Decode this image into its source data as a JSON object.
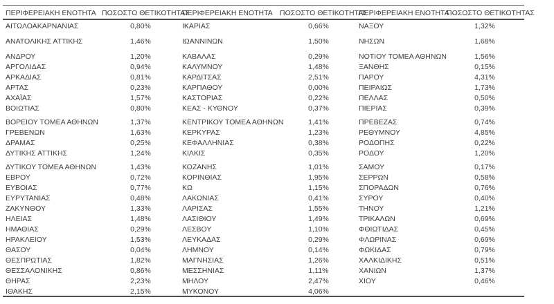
{
  "colors": {
    "background": "#ffffff",
    "text": "#3d3d3d",
    "rule": "#4f4f4f"
  },
  "table": {
    "columns": [
      {
        "headers": {
          "region": "ΠΕΡΙΦΕΡΕΙΑΚΗ ΕΝΟΤΗΤΑ",
          "rate": "ΠΟΣΟΣΤΟ ΘΕΤΙΚΟΤΗΤΑΣ"
        },
        "rows": [
          {
            "region": "ΑΙΤΩΛΟΑΚΑΡΝΑΝΙΑΣ",
            "rate": "0,80%"
          },
          {
            "region": "ΑΝΑΤΟΛΙΚΗΣ ΑΤΤΙΚΗΣ",
            "rate": "1,46%"
          },
          {
            "region": "ΑΝΔΡΟΥ",
            "rate": "1,20%"
          },
          {
            "region": "ΑΡΓΟΛΙΔΑΣ",
            "rate": "0,94%"
          },
          {
            "region": "ΑΡΚΑΔΙΑΣ",
            "rate": "0,81%"
          },
          {
            "region": "ΑΡΤΑΣ",
            "rate": "0,23%"
          },
          {
            "region": "ΑΧΑΪΑΣ",
            "rate": "1,57%"
          },
          {
            "region": "ΒΟΙΩΤΙΑΣ",
            "rate": "0,80%"
          },
          {
            "region": "ΒΟΡΕΙΟΥ ΤΟΜΕΑ ΑΘΗΝΩΝ",
            "rate": "1,37%"
          },
          {
            "region": "ΓΡΕΒΕΝΩΝ",
            "rate": "1,63%"
          },
          {
            "region": "ΔΡΑΜΑΣ",
            "rate": "0,25%"
          },
          {
            "region": "ΔΥΤΙΚΗΣ ΑΤΤΙΚΗΣ",
            "rate": "1,24%"
          },
          {
            "region": "ΔΥΤΙΚΟΥ ΤΟΜΕΑ ΑΘΗΝΩΝ",
            "rate": "1,43%"
          },
          {
            "region": "ΕΒΡΟΥ",
            "rate": "0,72%"
          },
          {
            "region": "ΕΥΒΟΙΑΣ",
            "rate": "0,77%"
          },
          {
            "region": "ΕΥΡΥΤΑΝΙΑΣ",
            "rate": "0,48%"
          },
          {
            "region": "ΖΑΚΥΝΘΟΥ",
            "rate": "1,33%"
          },
          {
            "region": "ΗΛΕΙΑΣ",
            "rate": "1,48%"
          },
          {
            "region": "ΗΜΑΘΙΑΣ",
            "rate": "0,29%"
          },
          {
            "region": "ΗΡΑΚΛΕΙΟΥ",
            "rate": "1,53%"
          },
          {
            "region": "ΘΑΣΟΥ",
            "rate": "0,04%"
          },
          {
            "region": "ΘΕΣΠΡΩΤΙΑΣ",
            "rate": "1,82%"
          },
          {
            "region": "ΘΕΣΣΑΛΟΝΙΚΗΣ",
            "rate": "0,86%"
          },
          {
            "region": "ΘΗΡΑΣ",
            "rate": "2,23%"
          },
          {
            "region": "ΙΘΑΚΗΣ",
            "rate": "2,15%"
          }
        ]
      },
      {
        "headers": {
          "region": "ΠΕΡΙΦΕΡΕΙΑΚΗ ΕΝΟΤΗΤΑ",
          "rate": "ΠΟΣΟΣΤΟ ΘΕΤΙΚΟΤΗΤΑΣ"
        },
        "rows": [
          {
            "region": "ΙΚΑΡΙΑΣ",
            "rate": "0,66%"
          },
          {
            "region": "ΙΩΑΝΝΙΝΩΝ",
            "rate": "1,50%"
          },
          {
            "region": "ΚΑΒΑΛΑΣ",
            "rate": "0,29%"
          },
          {
            "region": "ΚΑΛΥΜΝΟΥ",
            "rate": "1,48%"
          },
          {
            "region": "ΚΑΡΔΙΤΣΑΣ",
            "rate": "2,51%"
          },
          {
            "region": "ΚΑΡΠΑΘΟΥ",
            "rate": "0,00%"
          },
          {
            "region": "ΚΑΣΤΟΡΙΑΣ",
            "rate": "0,22%"
          },
          {
            "region": "ΚΕΑΣ - ΚΥΘΝΟΥ",
            "rate": "0,37%"
          },
          {
            "region": "ΚΕΝΤΡΙΚΟΥ ΤΟΜΕΑ ΑΘΗΝΩΝ",
            "rate": "1,41%"
          },
          {
            "region": "ΚΕΡΚΥΡΑΣ",
            "rate": "1,23%"
          },
          {
            "region": "ΚΕΦΑΛΛΗΝΙΑΣ",
            "rate": "0,38%"
          },
          {
            "region": "ΚΙΛΚΙΣ",
            "rate": "0,35%"
          },
          {
            "region": "ΚΟΖΑΝΗΣ",
            "rate": "1,01%"
          },
          {
            "region": "ΚΟΡΙΝΘΙΑΣ",
            "rate": "1,95%"
          },
          {
            "region": "ΚΩ",
            "rate": "1,15%"
          },
          {
            "region": "ΛΑΚΩΝΙΑΣ",
            "rate": "0,41%"
          },
          {
            "region": "ΛΑΡΙΣΑΣ",
            "rate": "1,55%"
          },
          {
            "region": "ΛΑΣΙΘΙΟΥ",
            "rate": "1,49%"
          },
          {
            "region": "ΛΕΣΒΟΥ",
            "rate": "1,10%"
          },
          {
            "region": "ΛΕΥΚΑΔΑΣ",
            "rate": "0,29%"
          },
          {
            "region": "ΛΗΜΝΟΥ",
            "rate": "0,14%"
          },
          {
            "region": "ΜΑΓΝΗΣΙΑΣ",
            "rate": "1,26%"
          },
          {
            "region": "ΜΕΣΣΗΝΙΑΣ",
            "rate": "1,11%"
          },
          {
            "region": "ΜΗΛΟΥ",
            "rate": "2,47%"
          },
          {
            "region": "ΜΥΚΟΝΟΥ",
            "rate": "4,06%"
          }
        ]
      },
      {
        "headers": {
          "region": "ΠΕΡΙΦΕΡΕΙΑΚΗ ΕΝΟΤΗΤΑ",
          "rate": "ΠΟΣΟΣΤΟ ΘΕΤΙΚΟΤΗΤΑΣ"
        },
        "rows": [
          {
            "region": "ΝΑΞΟΥ",
            "rate": "1,32%"
          },
          {
            "region": "ΝΗΣΩΝ",
            "rate": "1,68%"
          },
          {
            "region": "ΝΟΤΙΟΥ ΤΟΜΕΑ ΑΘΗΝΩΝ",
            "rate": "1,56%"
          },
          {
            "region": "ΞΑΝΘΗΣ",
            "rate": "0,15%"
          },
          {
            "region": "ΠΑΡΟΥ",
            "rate": "4,31%"
          },
          {
            "region": "ΠΕΙΡΑΙΩΣ",
            "rate": "1,73%"
          },
          {
            "region": "ΠΕΛΛΑΣ",
            "rate": "0,50%"
          },
          {
            "region": "ΠΙΕΡΙΑΣ",
            "rate": "0,39%"
          },
          {
            "region": "ΠΡΕΒΕΖΑΣ",
            "rate": "0,74%"
          },
          {
            "region": "ΡΕΘΥΜΝΟΥ",
            "rate": "4,85%"
          },
          {
            "region": "ΡΟΔΟΠΗΣ",
            "rate": "0,22%"
          },
          {
            "region": "ΡΟΔΟΥ",
            "rate": "1,20%"
          },
          {
            "region": "ΣΑΜΟΥ",
            "rate": "0,17%"
          },
          {
            "region": "ΣΕΡΡΩΝ",
            "rate": "0,58%"
          },
          {
            "region": "ΣΠΟΡΑΔΩΝ",
            "rate": "0,76%"
          },
          {
            "region": "ΣΥΡΟΥ",
            "rate": "0,40%"
          },
          {
            "region": "ΤΗΝΟΥ",
            "rate": "1,21%"
          },
          {
            "region": "ΤΡΙΚΑΛΩΝ",
            "rate": "0,69%"
          },
          {
            "region": "ΦΘΙΩΤΙΔΑΣ",
            "rate": "0,45%"
          },
          {
            "region": "ΦΛΩΡΙΝΑΣ",
            "rate": "0,69%"
          },
          {
            "region": "ΦΩΚΙΔΑΣ",
            "rate": "0,79%"
          },
          {
            "region": "ΧΑΛΚΙΔΙΚΗΣ",
            "rate": "0,51%"
          },
          {
            "region": "ΧΑΝΙΩΝ",
            "rate": "1,37%"
          },
          {
            "region": "ΧΙΟΥ",
            "rate": "0,46%"
          }
        ]
      }
    ]
  }
}
